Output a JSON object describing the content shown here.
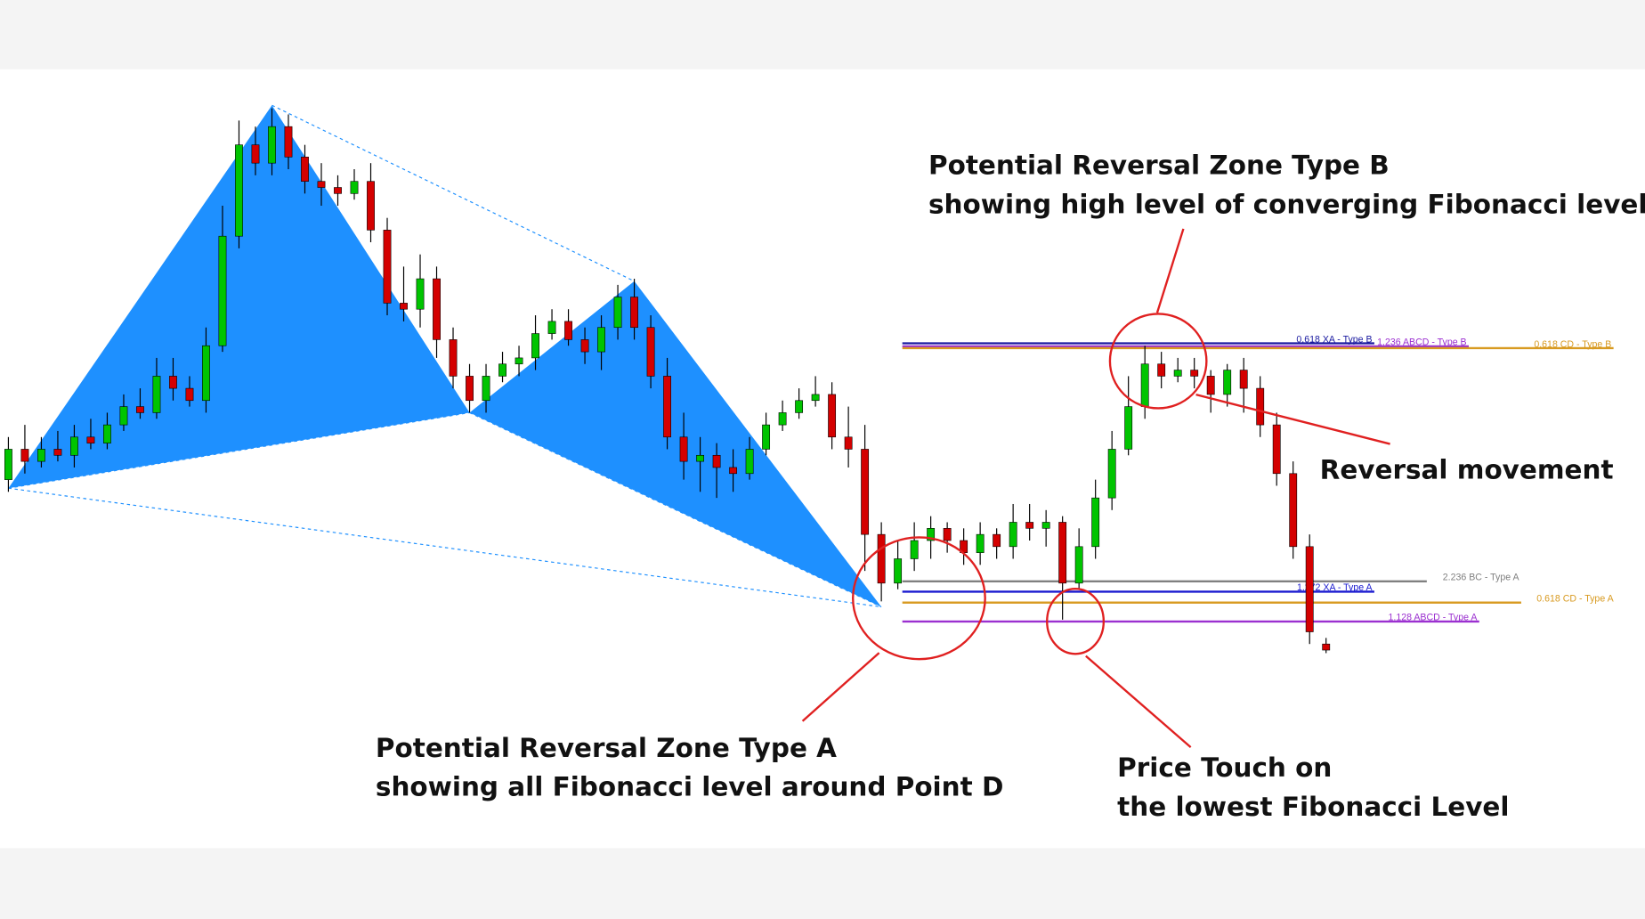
{
  "chart_data": {
    "type": "candlestick",
    "ylim": [
      0,
      100
    ],
    "up_color": "#00c400",
    "down_color": "#d40000",
    "wick_color": "#000000",
    "open": [
      35,
      40,
      38,
      40,
      39,
      42,
      41,
      44,
      47,
      46,
      52,
      50,
      48,
      57,
      75,
      90,
      87,
      93,
      88,
      84,
      83,
      82,
      84,
      76,
      64,
      63,
      68,
      58,
      52,
      48,
      52,
      54,
      55,
      59,
      61,
      58,
      56,
      60,
      65,
      60,
      52,
      42,
      38,
      39,
      37,
      36,
      40,
      44,
      46,
      48,
      49,
      42,
      40,
      26,
      18,
      22,
      25,
      27,
      25,
      23,
      26,
      24,
      28,
      27,
      28,
      18,
      24,
      32,
      40,
      47,
      54,
      52,
      53,
      52,
      49,
      53,
      50,
      44,
      36,
      24,
      8
    ],
    "high": [
      42,
      44,
      42,
      43,
      44,
      45,
      46,
      49,
      50,
      55,
      55,
      52,
      60,
      80,
      94,
      93,
      96,
      95,
      90,
      87,
      85,
      86,
      87,
      78,
      70,
      72,
      70,
      60,
      54,
      54,
      56,
      57,
      62,
      63,
      63,
      60,
      62,
      67,
      68,
      62,
      55,
      46,
      42,
      41,
      40,
      42,
      46,
      48,
      50,
      52,
      51,
      47,
      44,
      28,
      25,
      28,
      29,
      28,
      27,
      28,
      27,
      31,
      31,
      30,
      29,
      27,
      35,
      43,
      52,
      57,
      56,
      55,
      55,
      53,
      54,
      55,
      52,
      46,
      38,
      26,
      9
    ],
    "low": [
      33,
      36,
      37,
      38,
      37,
      40,
      40,
      43,
      45,
      45,
      48,
      47,
      46,
      56,
      73,
      85,
      85,
      86,
      82,
      80,
      80,
      81,
      74,
      62,
      61,
      60,
      55,
      50,
      46,
      46,
      51,
      52,
      53,
      58,
      57,
      54,
      53,
      58,
      58,
      50,
      40,
      35,
      33,
      32,
      33,
      35,
      39,
      43,
      45,
      47,
      40,
      37,
      20,
      15,
      17,
      20,
      22,
      23,
      21,
      21,
      22,
      22,
      25,
      24,
      12,
      17,
      22,
      30,
      39,
      45,
      50,
      51,
      50,
      46,
      47,
      46,
      42,
      34,
      22,
      8,
      6.5
    ],
    "close": [
      40,
      38,
      40,
      39,
      42,
      41,
      44,
      47,
      46,
      52,
      50,
      48,
      57,
      75,
      90,
      87,
      93,
      88,
      84,
      83,
      82,
      84,
      76,
      64,
      63,
      68,
      58,
      52,
      48,
      52,
      54,
      55,
      59,
      61,
      58,
      56,
      60,
      65,
      60,
      52,
      42,
      38,
      39,
      37,
      36,
      40,
      44,
      46,
      48,
      49,
      42,
      40,
      26,
      18,
      22,
      25,
      27,
      25,
      23,
      26,
      24,
      28,
      27,
      28,
      18,
      24,
      32,
      40,
      47,
      54,
      52,
      53,
      52,
      49,
      53,
      50,
      44,
      36,
      24,
      10,
      7
    ],
    "pattern": {
      "color": "#1e90ff",
      "x": [
        0,
        16,
        28,
        38,
        53
      ],
      "values": [
        33.6,
        96.5,
        46,
        67.6,
        14.1
      ]
    },
    "levels": [
      {
        "label": "0.618 XA - Type B",
        "value": 57.4,
        "color": "#1a1aa0"
      },
      {
        "label": "1.236 ABCD - Type B",
        "value": 56.9,
        "color": "#9b30d0"
      },
      {
        "label": "0.618 CD - Type B",
        "value": 56.6,
        "color": "#d89a20"
      },
      {
        "label": "2.236 BC - Type A",
        "value": 18.3,
        "color": "#808080"
      },
      {
        "label": "1.272 XA - Type A",
        "value": 16.6,
        "color": "#1a1ad0"
      },
      {
        "label": "0.618 CD - Type A",
        "value": 14.8,
        "color": "#d89a20"
      },
      {
        "label": "1.128 ABCD - Type A",
        "value": 11.7,
        "color": "#9b30d0"
      }
    ],
    "annotations": [
      {
        "lines": [
          "Potential Reversal Zone Type B",
          "showing high level of converging Fibonacci level"
        ]
      },
      {
        "lines": [
          "Reversal movement"
        ]
      },
      {
        "lines": [
          "Potential Reversal Zone Type A",
          "showing all Fibonacci level around Point D"
        ]
      },
      {
        "lines": [
          "Price Touch on",
          "the lowest Fibonacci Level"
        ]
      }
    ]
  }
}
